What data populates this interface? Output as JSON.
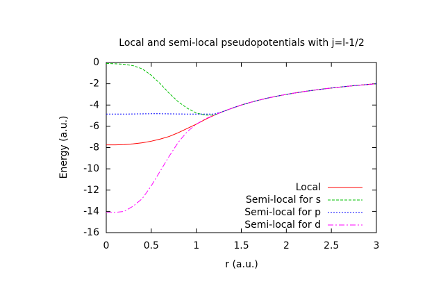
{
  "chart_data": {
    "type": "line",
    "title": "Local and semi-local pseudopotentials with j=l-1/2",
    "x_label": "r (a.u.)",
    "y_label": "Energy (a.u.)",
    "x": [
      0,
      0.1,
      0.2,
      0.3,
      0.4,
      0.5,
      0.6,
      0.7,
      0.8,
      0.9,
      1.0,
      1.1,
      1.2,
      1.3,
      1.4,
      1.5,
      1.6,
      1.7,
      1.8,
      1.9,
      2.0,
      2.1,
      2.2,
      2.3,
      2.4,
      2.5,
      2.6,
      2.7,
      2.8,
      2.9,
      3.0
    ],
    "series": [
      {
        "name": "Local",
        "color": "#ff0000",
        "dash": "none",
        "values": [
          -7.75,
          -7.75,
          -7.72,
          -7.65,
          -7.55,
          -7.4,
          -7.2,
          -6.95,
          -6.6,
          -6.2,
          -5.8,
          -5.35,
          -4.95,
          -4.6,
          -4.29,
          -4.0,
          -3.75,
          -3.53,
          -3.33,
          -3.16,
          -3.0,
          -2.86,
          -2.73,
          -2.61,
          -2.5,
          -2.4,
          -2.31,
          -2.22,
          -2.14,
          -2.07,
          -2.0
        ]
      },
      {
        "name": "Semi-local for s",
        "color": "#00c000",
        "dash": "4 2",
        "values": [
          -0.1,
          -0.12,
          -0.17,
          -0.3,
          -0.6,
          -1.2,
          -2.0,
          -2.9,
          -3.7,
          -4.3,
          -4.75,
          -4.95,
          -4.95,
          -4.6,
          -4.29,
          -4.0,
          -3.75,
          -3.53,
          -3.33,
          -3.16,
          -3.0,
          -2.86,
          -2.73,
          -2.61,
          -2.5,
          -2.4,
          -2.31,
          -2.22,
          -2.14,
          -2.07,
          -2.0
        ]
      },
      {
        "name": "Semi-local for p",
        "color": "#0000ff",
        "dash": "2 2",
        "values": [
          -4.85,
          -4.85,
          -4.85,
          -4.84,
          -4.83,
          -4.82,
          -4.82,
          -4.83,
          -4.84,
          -4.85,
          -4.85,
          -4.85,
          -4.85,
          -4.6,
          -4.29,
          -4.0,
          -3.75,
          -3.53,
          -3.33,
          -3.16,
          -3.0,
          -2.86,
          -2.73,
          -2.61,
          -2.5,
          -2.4,
          -2.31,
          -2.22,
          -2.14,
          -2.07,
          -2.0
        ]
      },
      {
        "name": "Semi-local for d",
        "color": "#ff00ff",
        "dash": "8 3 2 3",
        "values": [
          -14.1,
          -14.1,
          -14.0,
          -13.5,
          -12.8,
          -11.6,
          -10.2,
          -8.8,
          -7.5,
          -6.5,
          -5.8,
          -5.3,
          -4.95,
          -4.6,
          -4.29,
          -4.0,
          -3.75,
          -3.53,
          -3.33,
          -3.16,
          -3.0,
          -2.86,
          -2.73,
          -2.61,
          -2.5,
          -2.4,
          -2.31,
          -2.22,
          -2.14,
          -2.07,
          -2.0
        ]
      }
    ],
    "xlim": [
      0,
      3
    ],
    "ylim": [
      -16,
      0
    ],
    "xticks": [
      0,
      0.5,
      1,
      1.5,
      2,
      2.5,
      3
    ],
    "yticks": [
      0,
      -2,
      -4,
      -6,
      -8,
      -10,
      -12,
      -14,
      -16
    ],
    "grid": false,
    "legend": "lower-right"
  }
}
